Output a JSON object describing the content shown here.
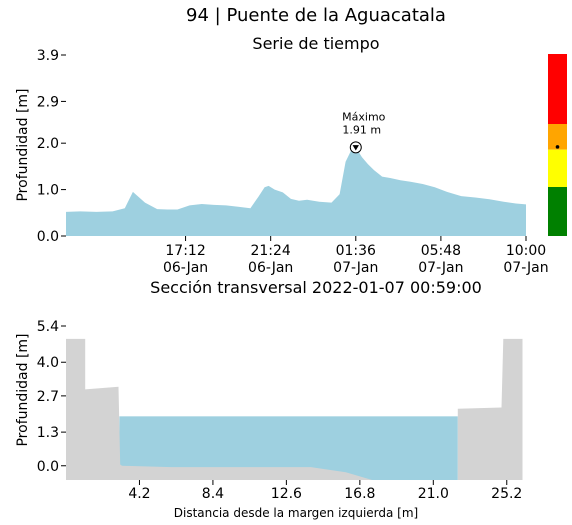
{
  "header": {
    "title": "94 | Puente de la Aguacatala"
  },
  "colors": {
    "water": "#9ed0e0",
    "ground": "#d3d3d3",
    "alert_red": "#ff0000",
    "alert_orange": "#ffa500",
    "alert_yellow": "#ffff00",
    "alert_green": "#008000"
  },
  "chart_data": [
    {
      "type": "area",
      "title": "Serie de tiempo",
      "ylabel": "Profundidad [m]",
      "xlabel": "",
      "ylim": [
        0,
        3.9
      ],
      "yticks": [
        "0.0",
        "1.0",
        "2.0",
        "2.9",
        "3.9"
      ],
      "ytick_values": [
        0.0,
        1.0,
        2.0,
        2.9,
        3.9
      ],
      "xticks": [
        {
          "time": "17:12",
          "date": "06-Jan",
          "hours": 17.2
        },
        {
          "time": "21:24",
          "date": "06-Jan",
          "hours": 21.4
        },
        {
          "time": "01:36",
          "date": "07-Jan",
          "hours": 25.6
        },
        {
          "time": "05:48",
          "date": "07-Jan",
          "hours": 29.8
        },
        {
          "time": "10:00",
          "date": "07-Jan",
          "hours": 34.0
        }
      ],
      "xlim_hours": [
        11.3,
        34.0
      ],
      "series": [
        {
          "x": [
            11.3,
            12.0,
            12.8,
            13.6,
            14.2,
            14.6,
            15.2,
            15.8,
            16.3,
            16.8,
            17.4,
            18.0,
            18.6,
            19.2,
            19.8,
            20.4,
            20.8,
            21.1,
            21.3,
            21.6,
            22.0,
            22.4,
            22.8,
            23.2,
            23.8,
            24.4,
            24.8,
            25.1,
            25.4,
            25.6,
            25.9,
            26.2,
            26.5,
            26.9,
            27.3,
            27.8,
            28.3,
            28.9,
            29.5,
            30.1,
            30.8,
            31.5,
            32.2,
            32.9,
            33.5,
            34.0
          ],
          "y": [
            0.52,
            0.53,
            0.52,
            0.53,
            0.6,
            0.95,
            0.72,
            0.58,
            0.57,
            0.57,
            0.66,
            0.69,
            0.67,
            0.66,
            0.63,
            0.6,
            0.85,
            1.05,
            1.08,
            1.0,
            0.94,
            0.8,
            0.76,
            0.78,
            0.74,
            0.72,
            0.9,
            1.6,
            1.87,
            1.91,
            1.7,
            1.55,
            1.42,
            1.28,
            1.25,
            1.2,
            1.17,
            1.12,
            1.05,
            0.95,
            0.86,
            0.83,
            0.79,
            0.74,
            0.7,
            0.68
          ]
        }
      ],
      "annotation": {
        "label": "Máximo",
        "value_text": "1.91 m",
        "x_hours": 25.6,
        "y": 1.91
      },
      "alert_scale": {
        "levels": [
          {
            "name": "rojo",
            "color": "#ff0000",
            "from": 2.4,
            "to": 3.9
          },
          {
            "name": "naranja",
            "color": "#ffa500",
            "from": 1.85,
            "to": 2.4
          },
          {
            "name": "amarillo",
            "color": "#ffff00",
            "from": 1.05,
            "to": 1.85
          },
          {
            "name": "verde",
            "color": "#008000",
            "from": 0.0,
            "to": 1.05
          }
        ],
        "current": 1.91
      }
    },
    {
      "type": "area",
      "title": "Sección transversal 2022-01-07 00:59:00",
      "xlabel": "Distancia desde la margen izquierda [m]",
      "ylabel": "Profundidad [m]",
      "xlim": [
        0,
        26.3
      ],
      "ylim": [
        -0.55,
        5.4
      ],
      "xticks": [
        "4.2",
        "8.4",
        "12.6",
        "16.8",
        "21.0",
        "25.2"
      ],
      "xtick_values": [
        4.2,
        8.4,
        12.6,
        16.8,
        21.0,
        25.2
      ],
      "yticks": [
        "0.0",
        "1.3",
        "2.7",
        "4.0",
        "5.4"
      ],
      "ytick_values": [
        0.0,
        1.3,
        2.7,
        4.0,
        5.4
      ],
      "water_level": 1.91,
      "profile": {
        "x": [
          0,
          1.1,
          1.1,
          3.0,
          3.1,
          3.2,
          6,
          10,
          14,
          16,
          17.5,
          20.0,
          22.4,
          22.4,
          24.9,
          25.0,
          26.1,
          26.1
        ],
        "y": [
          4.9,
          4.9,
          2.95,
          3.05,
          0.05,
          0.0,
          -0.05,
          -0.05,
          -0.05,
          -0.25,
          -0.6,
          -0.95,
          -1.05,
          2.2,
          2.25,
          4.9,
          4.9,
          -1.1
        ]
      }
    }
  ]
}
